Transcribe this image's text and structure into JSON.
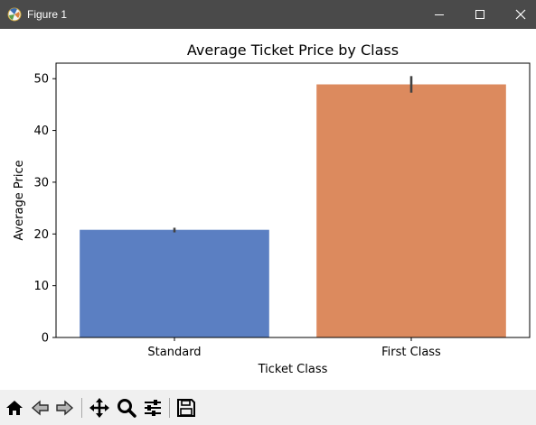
{
  "window": {
    "title": "Figure 1",
    "icons": [
      "app-icon",
      "minimize-icon",
      "maximize-icon",
      "close-icon"
    ],
    "colors": {
      "titlebar": "#4a4a4a",
      "toolbar": "#f0f0f0"
    }
  },
  "toolbar": {
    "items": [
      "home-icon",
      "back-arrow-icon",
      "forward-arrow-icon",
      "pan-icon",
      "zoom-icon",
      "configure-subplots-icon",
      "save-icon"
    ]
  },
  "chart_data": {
    "type": "bar",
    "title": "Average Ticket Price by Class",
    "xlabel": "Ticket Class",
    "ylabel": "Average Price",
    "categories": [
      "Standard",
      "First Class"
    ],
    "values": [
      20.8,
      48.9
    ],
    "error_bars": [
      [
        20.3,
        21.2
      ],
      [
        47.3,
        50.5
      ]
    ],
    "colors": [
      "#5b7fc2",
      "#dc8a5e"
    ],
    "error_color": "#424242",
    "ylim": [
      0,
      53
    ],
    "yticks": [
      0,
      10,
      20,
      30,
      40,
      50
    ],
    "grid": false,
    "legend": "none"
  }
}
